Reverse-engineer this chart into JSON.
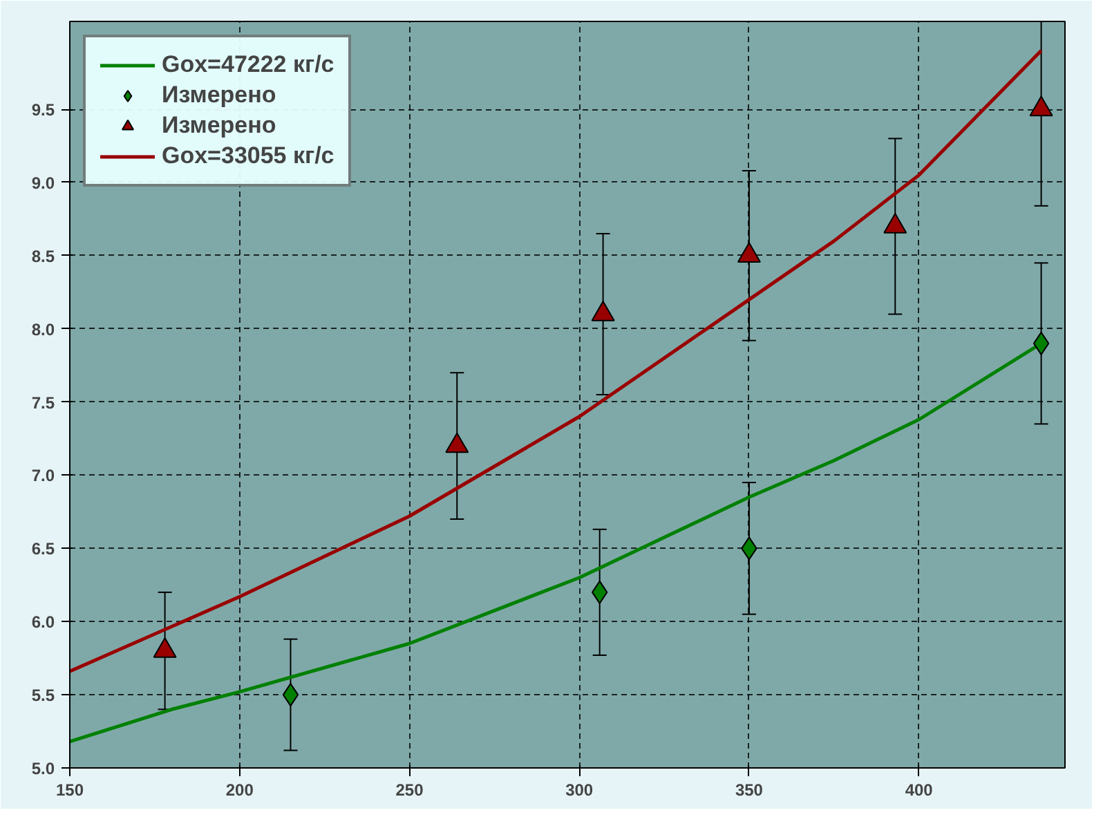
{
  "chart_data": {
    "type": "scatter",
    "xlim": [
      150,
      443
    ],
    "xticks": [
      150,
      200,
      250,
      300,
      350,
      400
    ],
    "ylim": [
      5.0,
      10.1
    ],
    "yticks": [
      {
        "value": 5.0,
        "label": "5.0"
      },
      {
        "value": 5.5,
        "label": "5.5"
      },
      {
        "value": 6.0,
        "label": "6.0"
      },
      {
        "value": 6.5,
        "label": "6.5"
      },
      {
        "value": 7.0,
        "label": "7.0"
      },
      {
        "value": 7.5,
        "label": "7.5"
      },
      {
        "value": 8.0,
        "label": "8.0"
      },
      {
        "value": 8.5,
        "label": "8.5"
      },
      {
        "value": 9.0,
        "label": "9.0"
      },
      {
        "value": 9.5,
        "label": "9.5"
      }
    ],
    "grid": true,
    "legend": "top left",
    "series": [
      {
        "name": "Gox=47222 кг/с",
        "type": "line",
        "color": "#008000",
        "line_style": "solid",
        "x": [
          150,
          180,
          200,
          250,
          300,
          350,
          375,
          400,
          436
        ],
        "values": [
          5.18,
          5.4,
          5.52,
          5.85,
          6.3,
          6.85,
          7.1,
          7.38,
          7.9
        ]
      },
      {
        "name": "Измерено",
        "marker": "diamond",
        "color": "#008000",
        "x": [
          215,
          306,
          350,
          436
        ],
        "values": [
          5.5,
          6.2,
          6.5,
          7.9
        ],
        "errors": [
          0.38,
          0.43,
          0.45,
          0.55
        ]
      },
      {
        "name": "Измерено",
        "marker": "triangle",
        "color": "#990000",
        "x": [
          178,
          264,
          307,
          350,
          393,
          436
        ],
        "values": [
          5.8,
          7.2,
          8.1,
          8.5,
          8.7,
          9.5
        ],
        "errors": [
          0.4,
          0.5,
          0.55,
          0.58,
          0.6,
          [
            8.84,
            10.1
          ]
        ]
      },
      {
        "name": "Gox=33055 кг/с",
        "type": "line",
        "color": "#990000",
        "line_style": "solid",
        "x": [
          150,
          200,
          250,
          300,
          350,
          375,
          400,
          436
        ],
        "values": [
          5.66,
          6.17,
          6.72,
          7.4,
          8.2,
          8.6,
          9.05,
          9.9
        ]
      }
    ]
  }
}
